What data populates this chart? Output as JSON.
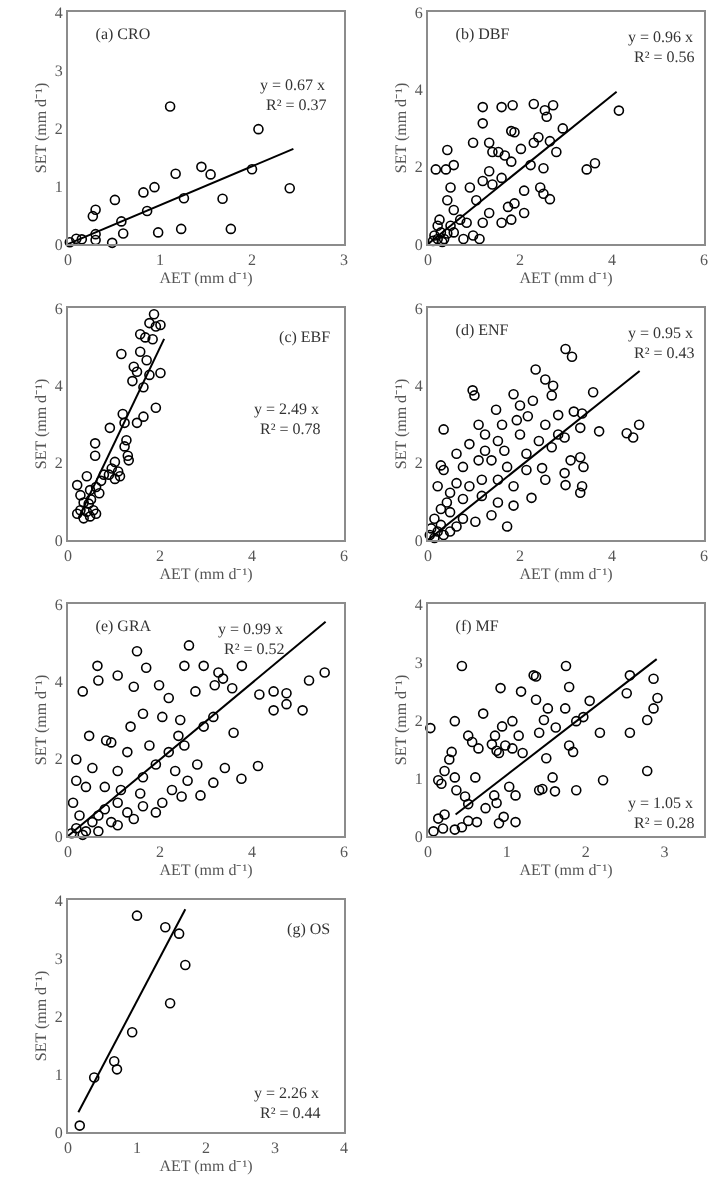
{
  "chart_data": [
    {
      "type": "scatter",
      "title": "(a) CRO",
      "xlabel": "AET (mm d⁻¹)",
      "ylabel": "SET (mm d⁻¹)",
      "annotations": [
        "y = 0.67 x",
        "R² = 0.37"
      ],
      "xlim": [
        0,
        3
      ],
      "xticks": [
        0,
        1,
        2,
        3
      ],
      "ylim": [
        0,
        4
      ],
      "yticks": [
        0,
        1,
        2,
        3,
        4
      ],
      "marker": "circle",
      "series": [
        {
          "color": "#000000",
          "x": [
            0.02,
            0.09,
            0.15,
            0.27,
            0.3,
            0.3,
            0.3,
            0.51,
            0.48,
            0.58,
            0.6,
            0.82,
            0.94,
            0.86,
            0.98,
            1.11,
            1.17,
            1.26,
            1.23,
            1.45,
            1.55,
            1.68,
            1.77,
            2.0,
            2.07,
            2.41
          ],
          "values": [
            0.03,
            0.09,
            0.08,
            0.48,
            0.59,
            0.17,
            0.07,
            0.76,
            0.02,
            0.39,
            0.18,
            0.89,
            0.98,
            0.57,
            0.2,
            2.37,
            1.21,
            0.79,
            0.26,
            1.33,
            1.2,
            0.78,
            0.26,
            1.29,
            1.98,
            0.96
          ]
        },
        {
          "type": "line",
          "marker": "none",
          "color": "#000000",
          "x": [
            0,
            2.45
          ],
          "values": [
            0,
            1.64
          ]
        }
      ]
    },
    {
      "type": "scatter",
      "title": "(b) DBF",
      "xlabel": "AET (mm d⁻¹)",
      "ylabel": "SET (mm d⁻¹)",
      "annotations": [
        "y = 0.96 x",
        "R² = 0.56"
      ],
      "xlim": [
        0,
        6
      ],
      "xticks": [
        0,
        2,
        4,
        6
      ],
      "ylim": [
        0,
        6
      ],
      "yticks": [
        0,
        2,
        4,
        6
      ],
      "marker": "circle",
      "series": [
        {
          "color": "#000000",
          "x": [
            1.19,
            1.84,
            1.6,
            2.3,
            2.72,
            2.54,
            2.58,
            2.93,
            1.81,
            1.88,
            1.19,
            0.98,
            1.33,
            0.42,
            0.17,
            0.39,
            0.56,
            1.4,
            1.53,
            1.67,
            1.81,
            2.02,
            2.3,
            2.4,
            2.65,
            2.79,
            2.51,
            2.23,
            3.45,
            3.63,
            4.15,
            2.09,
            2.44,
            2.65,
            2.51,
            1.74,
            1.81,
            1.6,
            1.33,
            1.19,
            1.12,
            0.77,
            0.84,
            0.7,
            0.56,
            0.42,
            0.49,
            1.05,
            0.91,
            1.19,
            1.4,
            1.33,
            1.6,
            0.21,
            0.14,
            0.21,
            0.28,
            0.35,
            0.11,
            0.31,
            0.42,
            0.49,
            0.25,
            0.56,
            0.98,
            2.09,
            1.88
          ],
          "values": [
            3.54,
            3.59,
            3.54,
            3.62,
            3.59,
            3.46,
            3.29,
            2.99,
            2.92,
            2.89,
            3.12,
            2.62,
            2.62,
            2.43,
            1.93,
            1.93,
            2.04,
            2.38,
            2.38,
            2.29,
            2.13,
            2.46,
            2.62,
            2.76,
            2.66,
            2.38,
            1.96,
            2.04,
            1.93,
            2.09,
            3.45,
            1.38,
            1.46,
            1.16,
            1.3,
            0.96,
            0.63,
            0.55,
            0.8,
            0.55,
            0.13,
            0.13,
            0.55,
            0.63,
            0.88,
            1.13,
            1.46,
            1.13,
            1.46,
            1.63,
            1.54,
            1.88,
            1.71,
            0.47,
            0.22,
            0.13,
            0.3,
            0.13,
            0.08,
            0.05,
            0.27,
            0.47,
            0.63,
            0.3,
            0.22,
            0.8,
            1.05
          ]
        },
        {
          "type": "line",
          "marker": "none",
          "color": "#000000",
          "x": [
            0,
            4.1
          ],
          "values": [
            0,
            3.94
          ]
        }
      ]
    },
    {
      "type": "scatter",
      "title": "(c) EBF",
      "xlabel": "AET (mm d⁻¹)",
      "ylabel": "SET (mm d⁻¹)",
      "annotations": [
        "y = 2.49 x",
        "R² = 0.78"
      ],
      "xlim": [
        0,
        6
      ],
      "xticks": [
        0,
        2,
        4,
        6
      ],
      "ylim": [
        0,
        6
      ],
      "yticks": [
        0,
        2,
        4,
        6
      ],
      "marker": "circle",
      "series": [
        {
          "color": "#000000",
          "x": [
            1.87,
            1.77,
            1.91,
            2.01,
            1.57,
            1.68,
            1.84,
            1.16,
            1.57,
            1.43,
            1.5,
            1.71,
            1.77,
            2.01,
            1.4,
            1.64,
            1.91,
            1.64,
            1.5,
            1.19,
            1.23,
            0.91,
            1.27,
            1.23,
            1.3,
            1.32,
            0.59,
            0.59,
            1.02,
            0.95,
            1.09,
            0.89,
            1.02,
            1.13,
            0.78,
            0.72,
            0.41,
            0.61,
            0.68,
            0.48,
            0.2,
            0.27,
            0.34,
            0.45,
            0.5,
            0.27,
            0.41,
            0.55,
            0.34,
            0.48,
            0.61,
            0.2
          ],
          "values": [
            5.84,
            5.61,
            5.52,
            5.56,
            5.32,
            5.24,
            5.19,
            4.81,
            4.87,
            4.48,
            4.35,
            4.65,
            4.27,
            4.32,
            4.11,
            3.95,
            3.42,
            3.19,
            3.03,
            3.26,
            3.03,
            2.9,
            2.58,
            2.42,
            2.18,
            2.06,
            2.5,
            2.18,
            2.02,
            1.85,
            1.77,
            1.69,
            1.58,
            1.65,
            1.69,
            1.53,
            1.65,
            1.37,
            1.21,
            1.29,
            1.42,
            1.16,
            0.97,
            0.94,
            1.05,
            0.77,
            0.73,
            0.77,
            0.56,
            0.61,
            0.68,
            0.68
          ]
        },
        {
          "type": "line",
          "marker": "none",
          "color": "#000000",
          "x": [
            0.23,
            2.09
          ],
          "values": [
            0.57,
            5.2
          ]
        }
      ]
    },
    {
      "type": "scatter",
      "title": "(d) ENF",
      "xlabel": "AET (mm d⁻¹)",
      "ylabel": "SET (mm d⁻¹)",
      "annotations": [
        "y = 0.95 x",
        "R² = 0.43"
      ],
      "xlim": [
        0,
        6
      ],
      "xticks": [
        0,
        2,
        4,
        6
      ],
      "ylim": [
        0,
        6
      ],
      "yticks": [
        0,
        2,
        4,
        6
      ],
      "marker": "circle",
      "series": [
        {
          "color": "#000000",
          "x": [
            2.99,
            3.13,
            2.34,
            2.55,
            2.72,
            0.97,
            1.01,
            1.86,
            1.48,
            2.0,
            2.69,
            3.59,
            0.34,
            1.1,
            1.61,
            2.17,
            2.83,
            3.17,
            3.35,
            3.72,
            4.32,
            4.46,
            4.59,
            3.31,
            2.97,
            2.69,
            2.41,
            2.0,
            1.52,
            1.24,
            0.9,
            0.62,
            0.28,
            0.34,
            0.76,
            1.1,
            1.38,
            1.72,
            2.14,
            2.48,
            3.1,
            3.31,
            3.38,
            2.97,
            2.55,
            2.99,
            3.35,
            3.31,
            2.25,
            1.86,
            1.52,
            1.17,
            0.9,
            0.62,
            0.48,
            0.21,
            0.76,
            1.17,
            1.52,
            1.86,
            1.38,
            1.72,
            1.03,
            0.76,
            0.48,
            0.28,
            0.14,
            0.07,
            0.04,
            0.21,
            0.34,
            0.48,
            0.62,
            0.14,
            0.28,
            0.41,
            1.24,
            1.66,
            2.14,
            1.93,
            2.28,
            2.55,
            2.83
          ],
          "values": [
            4.94,
            4.74,
            4.41,
            4.15,
            3.99,
            3.87,
            3.74,
            3.77,
            3.37,
            3.48,
            3.74,
            3.82,
            2.86,
            2.98,
            2.98,
            3.2,
            3.23,
            3.32,
            3.27,
            2.81,
            2.76,
            2.65,
            2.98,
            2.9,
            2.65,
            2.4,
            2.56,
            2.73,
            2.56,
            2.73,
            2.48,
            2.23,
            1.93,
            1.81,
            1.89,
            2.06,
            2.06,
            1.89,
            1.81,
            1.86,
            2.06,
            2.14,
            1.89,
            1.73,
            1.56,
            1.42,
            1.39,
            1.22,
            1.09,
            1.39,
            1.56,
            1.56,
            1.39,
            1.47,
            1.22,
            1.39,
            1.06,
            1.14,
            0.97,
            0.89,
            0.64,
            0.35,
            0.47,
            0.55,
            0.72,
            0.8,
            0.55,
            0.3,
            0.13,
            0.22,
            0.13,
            0.22,
            0.35,
            0.05,
            0.39,
            0.97,
            2.31,
            2.31,
            2.23,
            3.1,
            3.6,
            2.98,
            2.73
          ]
        },
        {
          "type": "line",
          "marker": "none",
          "color": "#000000",
          "x": [
            0,
            4.6
          ],
          "values": [
            0,
            4.37
          ]
        }
      ]
    },
    {
      "type": "scatter",
      "title": "(e) GRA",
      "xlabel": "AET (mm d⁻¹)",
      "ylabel": "SET (mm d⁻¹)",
      "annotations": [
        "y = 0.99 x",
        "R² = 0.52"
      ],
      "xlim": [
        0,
        6
      ],
      "xticks": [
        0,
        2,
        4,
        6
      ],
      "ylim": [
        0,
        6
      ],
      "yticks": [
        0,
        2,
        4,
        6
      ],
      "marker": "circle",
      "series": [
        {
          "color": "#000000",
          "x": [
            1.5,
            2.63,
            0.64,
            0.66,
            1.08,
            1.7,
            0.32,
            1.43,
            1.98,
            2.19,
            2.53,
            2.95,
            3.27,
            3.37,
            3.78,
            3.57,
            3.19,
            2.77,
            4.16,
            4.47,
            4.47,
            4.75,
            4.75,
            5.1,
            5.24,
            5.58,
            4.13,
            3.77,
            3.16,
            3.41,
            3.6,
            2.95,
            2.44,
            2.05,
            1.63,
            1.36,
            0.94,
            0.83,
            0.46,
            0.18,
            0.53,
            1.08,
            1.29,
            1.77,
            2.19,
            2.53,
            2.81,
            2.33,
            1.91,
            2.6,
            2.26,
            2.47,
            2.88,
            1.91,
            2.05,
            1.57,
            1.15,
            0.8,
            0.39,
            0.18,
            0.11,
            0.25,
            0.18,
            0.39,
            0.53,
            0.66,
            0.8,
            0.94,
            1.08,
            1.29,
            1.43,
            1.08,
            0.08,
            0.32,
            0.66,
            1.63,
            1.63,
            2.4,
            3.16
          ],
          "values": [
            4.78,
            4.93,
            4.4,
            4.02,
            4.15,
            4.35,
            3.74,
            3.86,
            3.9,
            3.57,
            4.4,
            4.4,
            4.23,
            4.07,
            4.4,
            3.82,
            3.9,
            3.74,
            3.66,
            3.74,
            3.25,
            3.69,
            3.41,
            3.25,
            4.02,
            4.23,
            1.81,
            1.48,
            1.38,
            1.76,
            2.67,
            2.83,
            3.0,
            3.08,
            3.16,
            2.83,
            2.42,
            2.47,
            2.59,
            1.98,
            1.76,
            1.68,
            2.17,
            2.34,
            2.17,
            2.34,
            1.85,
            1.68,
            1.85,
            1.43,
            1.19,
            1.02,
            1.05,
            0.61,
            0.86,
            1.1,
            1.19,
            1.27,
            1.27,
            1.43,
            0.86,
            0.53,
            0.2,
            0.12,
            0.36,
            0.53,
            0.69,
            0.36,
            0.86,
            0.61,
            0.44,
            0.28,
            0.07,
            0.03,
            0.12,
            0.77,
            1.52,
            2.59,
            3.08
          ]
        },
        {
          "type": "line",
          "marker": "none",
          "color": "#000000",
          "x": [
            0,
            5.6
          ],
          "values": [
            0,
            5.54
          ]
        }
      ]
    },
    {
      "type": "scatter",
      "title": "(f) MF",
      "xlabel": "AET (mm d⁻¹)",
      "ylabel": "SET (mm d⁻¹)",
      "annotations": [
        "y = 1.05 x",
        "R² = 0.28"
      ],
      "xlim": [
        0,
        3.5
      ],
      "xticks": [
        0,
        1,
        2,
        3
      ],
      "ylim": [
        0,
        4
      ],
      "yticks": [
        0,
        1,
        2,
        3,
        4
      ],
      "marker": "circle",
      "series": [
        {
          "color": "#000000",
          "x": [
            0.03,
            0.43,
            0.34,
            0.17,
            0.13,
            0.27,
            0.3,
            0.21,
            0.34,
            0.36,
            0.47,
            0.51,
            0.6,
            0.51,
            0.56,
            0.64,
            0.7,
            0.81,
            0.85,
            0.87,
            0.9,
            0.98,
            1.07,
            0.94,
            1.07,
            1.15,
            0.92,
            1.18,
            1.37,
            1.47,
            1.52,
            1.41,
            1.2,
            1.03,
            0.84,
            0.87,
            0.73,
            0.9,
            0.96,
            1.11,
            1.11,
            0.51,
            0.62,
            0.43,
            0.19,
            0.13,
            0.07,
            0.34,
            0.21,
            1.34,
            1.37,
            1.75,
            1.79,
            1.74,
            1.62,
            1.5,
            1.58,
            1.41,
            1.45,
            1.61,
            1.88,
            1.97,
            1.79,
            1.84,
            2.18,
            2.05,
            2.22,
            2.56,
            2.52,
            2.78,
            2.56,
            2.86,
            2.91,
            2.86,
            2.78,
            1.88
          ],
          "values": [
            1.86,
            2.93,
            1.98,
            0.9,
            0.96,
            1.32,
            1.45,
            1.12,
            1.01,
            0.79,
            0.68,
            0.55,
            1.01,
            1.73,
            1.62,
            1.51,
            2.11,
            1.58,
            1.73,
            1.47,
            1.43,
            1.56,
            1.51,
            1.89,
            1.98,
            1.73,
            2.55,
            2.49,
            2.35,
            2.0,
            2.2,
            1.78,
            1.43,
            0.85,
            0.7,
            0.57,
            0.48,
            0.22,
            0.33,
            0.7,
            0.24,
            0.26,
            0.24,
            0.15,
            0.13,
            0.3,
            0.08,
            0.11,
            0.37,
            2.77,
            2.75,
            2.93,
            2.57,
            2.2,
            1.87,
            1.34,
            1.01,
            0.79,
            0.81,
            0.77,
            1.98,
            2.05,
            1.56,
            1.45,
            1.78,
            2.33,
            0.96,
            2.77,
            2.46,
            2.0,
            1.78,
            2.71,
            2.38,
            2.2,
            1.12,
            0.79
          ]
        },
        {
          "type": "line",
          "marker": "none",
          "color": "#000000",
          "x": [
            0.35,
            2.9
          ],
          "values": [
            0.37,
            3.05
          ]
        }
      ]
    },
    {
      "type": "scatter",
      "title": "(g) OS",
      "xlabel": "AET (mm d⁻¹)",
      "ylabel": "SET (mm d⁻¹)",
      "annotations": [
        "y = 2.26 x",
        "R² = 0.44"
      ],
      "xlim": [
        0,
        4
      ],
      "xticks": [
        0,
        1,
        2,
        3,
        4
      ],
      "ylim": [
        0,
        4
      ],
      "yticks": [
        0,
        1,
        2,
        3,
        4
      ],
      "marker": "circle",
      "series": [
        {
          "color": "#000000",
          "x": [
            0.17,
            0.38,
            0.67,
            0.71,
            0.93,
            1.0,
            1.41,
            1.61,
            1.48,
            1.7
          ],
          "values": [
            0.11,
            0.94,
            1.22,
            1.08,
            1.72,
            3.73,
            3.53,
            3.42,
            2.22,
            2.88
          ]
        },
        {
          "type": "line",
          "marker": "none",
          "color": "#000000",
          "x": [
            0.15,
            1.7
          ],
          "values": [
            0.34,
            3.84
          ]
        }
      ]
    }
  ]
}
